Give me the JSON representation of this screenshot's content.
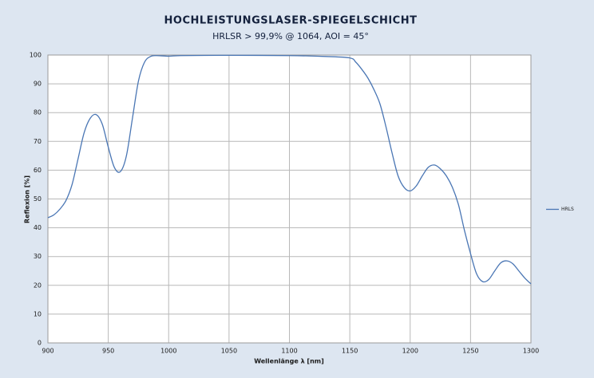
{
  "chart_data": {
    "type": "line",
    "title": "HOCHLEISTUNGSLASER-SPIEGELSCHICHT",
    "subtitle": "HRLSR > 99,9% @ 1064, AOI = 45°",
    "x_label": "Wellenlänge λ [nm]",
    "y_label": "Reflexion [%]",
    "x": [
      900,
      905,
      910,
      915,
      920,
      925,
      930,
      935,
      940,
      945,
      950,
      955,
      960,
      965,
      970,
      975,
      980,
      985,
      990,
      1000,
      1010,
      1050,
      1100,
      1130,
      1150,
      1155,
      1160,
      1165,
      1170,
      1175,
      1180,
      1185,
      1190,
      1195,
      1200,
      1205,
      1210,
      1215,
      1220,
      1225,
      1230,
      1235,
      1240,
      1245,
      1250,
      1255,
      1260,
      1265,
      1270,
      1275,
      1280,
      1285,
      1290,
      1295,
      1300
    ],
    "series": [
      {
        "name": "HRLS",
        "color": "#4a76b4",
        "values": [
          43.5,
          44.5,
          46.5,
          49.5,
          55,
          64,
          73,
          78,
          79.3,
          76,
          68,
          61,
          59.5,
          65,
          78,
          91,
          97.5,
          99.5,
          99.8,
          99.6,
          99.8,
          99.9,
          99.8,
          99.5,
          99,
          97.5,
          95,
          92,
          88,
          83,
          75,
          66,
          58,
          54,
          52.8,
          54.5,
          58,
          61,
          61.8,
          60.5,
          58,
          54,
          48,
          39,
          31,
          24,
          21.3,
          22,
          25,
          27.8,
          28.5,
          27.5,
          25,
          22.5,
          20.5
        ]
      }
    ],
    "xlim": [
      900,
      1300
    ],
    "xticks": [
      900,
      950,
      1000,
      1050,
      1100,
      1150,
      1200,
      1250,
      1300
    ],
    "ylim": [
      0,
      100
    ],
    "yticks": [
      0,
      10,
      20,
      30,
      40,
      50,
      60,
      70,
      80,
      90,
      100
    ],
    "grid": true,
    "legend": "right"
  }
}
